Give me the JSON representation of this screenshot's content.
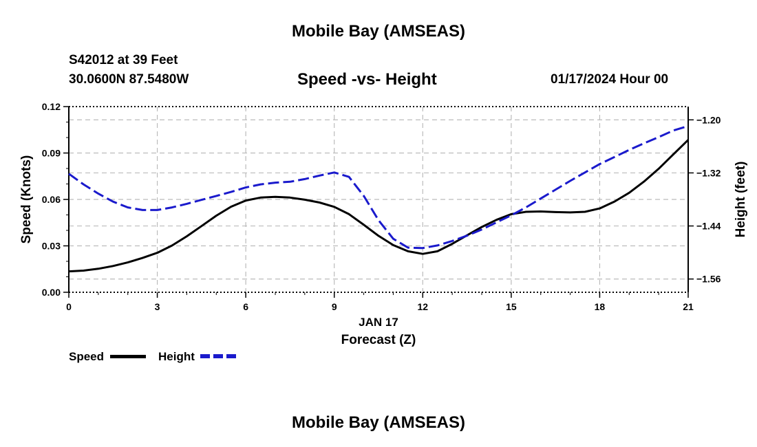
{
  "header": {
    "title": "Mobile Bay (AMSEAS)",
    "station": "S42012 at 39 Feet",
    "coords": "30.0600N  87.5480W",
    "subtitle": "Speed -vs- Height",
    "datetime": "01/17/2024 Hour 00"
  },
  "footer": {
    "title": "Mobile Bay (AMSEAS)"
  },
  "legend": {
    "speed_label": "Speed",
    "height_label": "Height"
  },
  "colors": {
    "speed": "#000000",
    "height": "#1a1acc",
    "grid": "#bbbbbb"
  },
  "chart_data": {
    "type": "line",
    "title": "Speed -vs- Height",
    "xlabel": "Forecast (Z)",
    "xlabel_date": "JAN 17",
    "ylabel": "Speed (Knots)",
    "y2label": "Height (feet)",
    "xlim": [
      0,
      21
    ],
    "ylim": [
      0,
      0.12
    ],
    "y2lim": [
      -1.59,
      -1.17
    ],
    "x_ticks": [
      0,
      3,
      6,
      9,
      12,
      15,
      18,
      21
    ],
    "x_tick_labels": [
      "0",
      "3",
      "6",
      "9",
      "12",
      "15",
      "18",
      "21"
    ],
    "y_ticks": [
      0,
      0.03,
      0.06,
      0.09,
      0.12
    ],
    "y_tick_labels": [
      "0.00",
      "0.03",
      "0.06",
      "0.09",
      "0.12"
    ],
    "y2_ticks": [
      -1.56,
      -1.44,
      -1.32,
      -1.2
    ],
    "y2_tick_labels": [
      "−1.56",
      "−1.44",
      "−1.32",
      "−1.20"
    ],
    "grid": true,
    "series": [
      {
        "name": "Speed",
        "axis": "left",
        "style": "solid",
        "x": [
          0,
          0.5,
          1,
          1.5,
          2,
          2.5,
          3,
          3.5,
          4,
          4.5,
          5,
          5.5,
          6,
          6.5,
          7,
          7.5,
          8,
          8.5,
          9,
          9.5,
          10,
          10.5,
          11,
          11.5,
          12,
          12.5,
          13,
          13.5,
          14,
          14.5,
          15,
          15.5,
          16,
          16.5,
          17,
          17.5,
          18,
          18.5,
          19,
          19.5,
          20,
          20.5,
          21
        ],
        "values": [
          0.0135,
          0.014,
          0.0152,
          0.017,
          0.0193,
          0.0222,
          0.0255,
          0.0302,
          0.0362,
          0.0428,
          0.0495,
          0.0553,
          0.0593,
          0.0612,
          0.0617,
          0.0612,
          0.0598,
          0.058,
          0.0552,
          0.0505,
          0.0436,
          0.0365,
          0.0305,
          0.0265,
          0.0248,
          0.0265,
          0.0313,
          0.0368,
          0.0422,
          0.0468,
          0.0505,
          0.052,
          0.0522,
          0.0518,
          0.0516,
          0.052,
          0.0542,
          0.0586,
          0.0643,
          0.0715,
          0.0798,
          0.0892,
          0.0985
        ]
      },
      {
        "name": "Height",
        "axis": "right",
        "style": "dashed",
        "x": [
          0,
          0.5,
          1,
          1.5,
          2,
          2.5,
          3,
          3.5,
          4,
          4.5,
          5,
          5.5,
          6,
          6.5,
          7,
          7.5,
          8,
          8.5,
          9,
          9.5,
          10,
          10.5,
          11,
          11.5,
          12,
          12.5,
          13,
          13.5,
          14,
          14.5,
          15,
          15.5,
          16,
          16.5,
          17,
          17.5,
          18,
          18.5,
          19,
          19.5,
          20,
          20.5,
          21
        ],
        "values": [
          -1.322,
          -1.346,
          -1.367,
          -1.385,
          -1.398,
          -1.404,
          -1.404,
          -1.398,
          -1.39,
          -1.381,
          -1.372,
          -1.363,
          -1.353,
          -1.346,
          -1.342,
          -1.34,
          -1.334,
          -1.326,
          -1.319,
          -1.329,
          -1.372,
          -1.427,
          -1.469,
          -1.489,
          -1.49,
          -1.484,
          -1.474,
          -1.462,
          -1.448,
          -1.432,
          -1.416,
          -1.398,
          -1.378,
          -1.358,
          -1.338,
          -1.319,
          -1.3,
          -1.284,
          -1.268,
          -1.253,
          -1.239,
          -1.224,
          -1.214
        ]
      }
    ]
  }
}
